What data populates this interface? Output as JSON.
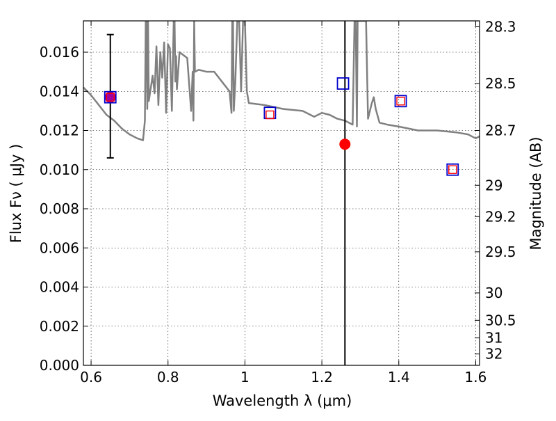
{
  "chart_data": {
    "type": "scatter",
    "xlabel": "Wavelength  λ (μm)",
    "ylabel": "Flux  Fν  ( μJy )",
    "y2label": "Magnitude (AB)",
    "xlim": [
      0.58,
      1.61
    ],
    "ylim": [
      0.0,
      0.0176
    ],
    "grid": true,
    "x_ticks": [
      0.6,
      0.8,
      1.0,
      1.2,
      1.4,
      1.6
    ],
    "x_tick_labels": [
      "0.6",
      "0.8",
      "1",
      "1.2",
      "1.4",
      "1.6"
    ],
    "y_ticks": [
      0.0,
      0.002,
      0.004,
      0.006,
      0.008,
      0.01,
      0.012,
      0.014,
      0.016
    ],
    "y_tick_labels": [
      "0.000",
      "0.002",
      "0.004",
      "0.006",
      "0.008",
      "0.010",
      "0.012",
      "0.014",
      "0.016"
    ],
    "mag_ticks": [
      {
        "value": 0.0173,
        "label": "28.3"
      },
      {
        "value": 0.0144,
        "label": "28.5"
      },
      {
        "value": 0.012,
        "label": "28.7"
      },
      {
        "value": 0.0092,
        "label": "29"
      },
      {
        "value": 0.0076,
        "label": "29.2"
      },
      {
        "value": 0.0058,
        "label": "29.5"
      },
      {
        "value": 0.0037,
        "label": "30"
      },
      {
        "value": 0.0023,
        "label": "30.5"
      },
      {
        "value": 0.0014,
        "label": "31"
      },
      {
        "value": 0.00058,
        "label": "32"
      }
    ],
    "model_spectrum": {
      "color": "#808080",
      "x": [
        0.58,
        0.6,
        0.62,
        0.64,
        0.66,
        0.68,
        0.7,
        0.72,
        0.735,
        0.74,
        0.742,
        0.744,
        0.746,
        0.748,
        0.75,
        0.76,
        0.765,
        0.77,
        0.775,
        0.78,
        0.785,
        0.79,
        0.795,
        0.8,
        0.805,
        0.81,
        0.815,
        0.817,
        0.819,
        0.821,
        0.823,
        0.83,
        0.85,
        0.86,
        0.864,
        0.866,
        0.868,
        0.87,
        0.88,
        0.9,
        0.92,
        0.94,
        0.96,
        0.965,
        0.967,
        0.969,
        0.971,
        0.975,
        0.98,
        0.985,
        0.99,
        0.995,
        1.0,
        1.005,
        1.01,
        1.05,
        1.1,
        1.15,
        1.18,
        1.2,
        1.22,
        1.24,
        1.26,
        1.28,
        1.285,
        1.288,
        1.291,
        1.293,
        1.3,
        1.31,
        1.315,
        1.32,
        1.33,
        1.335,
        1.34,
        1.35,
        1.37,
        1.4,
        1.45,
        1.5,
        1.55,
        1.58,
        1.6,
        1.61
      ],
      "y": [
        0.0142,
        0.0138,
        0.0133,
        0.0128,
        0.0125,
        0.0121,
        0.0118,
        0.0116,
        0.0115,
        0.0125,
        0.0176,
        0.0176,
        0.0131,
        0.0176,
        0.0135,
        0.0148,
        0.0139,
        0.0163,
        0.0133,
        0.016,
        0.0147,
        0.0165,
        0.0129,
        0.0164,
        0.0162,
        0.013,
        0.0176,
        0.0176,
        0.0145,
        0.0158,
        0.0141,
        0.016,
        0.0157,
        0.013,
        0.015,
        0.0125,
        0.0176,
        0.015,
        0.0151,
        0.015,
        0.015,
        0.0145,
        0.014,
        0.0129,
        0.0176,
        0.0176,
        0.013,
        0.0145,
        0.0176,
        0.0176,
        0.014,
        0.0176,
        0.0176,
        0.014,
        0.0134,
        0.0133,
        0.0131,
        0.013,
        0.0127,
        0.0129,
        0.0128,
        0.0126,
        0.0125,
        0.0123,
        0.0176,
        0.0176,
        0.0122,
        0.0176,
        0.0176,
        0.0176,
        0.0176,
        0.0126,
        0.0134,
        0.0137,
        0.0131,
        0.0124,
        0.0123,
        0.0122,
        0.012,
        0.012,
        0.0119,
        0.0118,
        0.0116,
        0.0117
      ]
    },
    "observed_points": [
      {
        "x": 0.65,
        "y": 0.0137,
        "color": "#cc0000",
        "yerr_low": 0.0106,
        "yerr_high": 0.0169
      },
      {
        "x": 1.26,
        "y": 0.0113,
        "color": "#ff0000"
      }
    ],
    "model_photometry_blue": {
      "color": "#0000cc",
      "points": [
        {
          "x": 0.65,
          "y": 0.0137
        },
        {
          "x": 1.065,
          "y": 0.0129
        },
        {
          "x": 1.255,
          "y": 0.0144
        },
        {
          "x": 1.405,
          "y": 0.0135
        },
        {
          "x": 1.54,
          "y": 0.01
        }
      ]
    },
    "model_photometry_red": {
      "color": "#ff0000",
      "points": [
        {
          "x": 0.65,
          "y": 0.0137
        },
        {
          "x": 1.065,
          "y": 0.0128
        },
        {
          "x": 1.405,
          "y": 0.0135
        },
        {
          "x": 1.54,
          "y": 0.01
        }
      ]
    },
    "vertical_line": {
      "x": 1.26,
      "color": "#000000"
    }
  }
}
